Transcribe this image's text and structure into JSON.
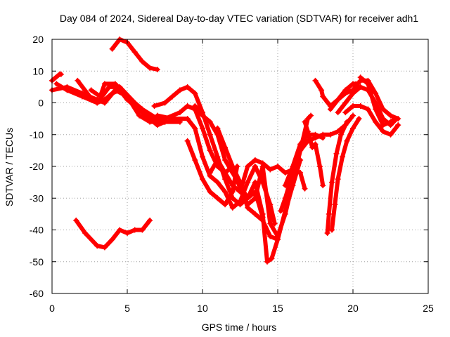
{
  "chart_data": {
    "type": "scatter",
    "title": "Day 084 of 2024, Sidereal Day-to-day VTEC variation (SDTVAR) for receiver adh1",
    "xlabel": "GPS time / hours",
    "ylabel": "SDTVAR / TECUs",
    "xlim": [
      0,
      25
    ],
    "ylim": [
      -60,
      20
    ],
    "xticks": [
      "0",
      "5",
      "10",
      "15",
      "20",
      "25"
    ],
    "yticks": [
      "-60",
      "-50",
      "-40",
      "-30",
      "-20",
      "-10",
      "0",
      "10",
      "20"
    ],
    "grid": true,
    "legend": "none",
    "marker": "+",
    "series_color": "#ff0000",
    "series": [
      {
        "points": [
          [
            0,
            7
          ],
          [
            0.5,
            9
          ],
          [
            0.6,
            9
          ]
        ]
      },
      {
        "points": [
          [
            0,
            4
          ],
          [
            1,
            5
          ],
          [
            2,
            3
          ],
          [
            3,
            1
          ],
          [
            3.5,
            0
          ],
          [
            4.2,
            4
          ],
          [
            5,
            2
          ],
          [
            6,
            -2
          ],
          [
            7,
            -5
          ],
          [
            7.5,
            -6
          ]
        ]
      },
      {
        "points": [
          [
            0.3,
            6
          ],
          [
            1,
            4
          ],
          [
            2,
            2
          ],
          [
            3,
            0
          ],
          [
            3.5,
            1
          ],
          [
            4,
            3
          ],
          [
            4.5,
            4
          ],
          [
            5,
            1
          ],
          [
            6,
            -3
          ],
          [
            7,
            -6
          ]
        ]
      },
      {
        "points": [
          [
            1.7,
            7
          ],
          [
            2.5,
            2
          ],
          [
            3,
            0
          ],
          [
            3.8,
            5
          ],
          [
            4.5,
            5
          ],
          [
            5.5,
            0
          ],
          [
            6,
            -3
          ],
          [
            6.5,
            -5
          ],
          [
            7,
            -7
          ],
          [
            7.5,
            -6
          ]
        ]
      },
      {
        "points": [
          [
            2.6,
            4
          ],
          [
            3.2,
            2
          ],
          [
            3.5,
            6
          ],
          [
            4.2,
            6
          ],
          [
            5,
            2
          ],
          [
            5.8,
            -4
          ],
          [
            6.5,
            -6
          ],
          [
            7.5,
            -6
          ],
          [
            8.5,
            -6
          ]
        ]
      },
      {
        "points": [
          [
            4,
            17
          ],
          [
            4.5,
            20
          ],
          [
            5,
            19
          ],
          [
            5.5,
            16
          ],
          [
            6,
            13
          ],
          [
            6.5,
            11
          ],
          [
            7,
            10.5
          ]
        ]
      },
      {
        "points": [
          [
            1.6,
            -37
          ],
          [
            2.2,
            -41
          ],
          [
            3,
            -45
          ],
          [
            3.5,
            -45.5
          ],
          [
            4,
            -43
          ],
          [
            4.5,
            -40
          ],
          [
            5,
            -41
          ],
          [
            5.5,
            -40
          ],
          [
            6,
            -40
          ],
          [
            6.5,
            -37
          ]
        ]
      },
      {
        "points": [
          [
            6.8,
            -1
          ],
          [
            7.5,
            0
          ],
          [
            8,
            2
          ],
          [
            8.5,
            4
          ],
          [
            9,
            5
          ],
          [
            9.5,
            3
          ],
          [
            10,
            -3
          ],
          [
            10.5,
            -10
          ],
          [
            11,
            -17
          ],
          [
            11.5,
            -24
          ],
          [
            12,
            -30
          ],
          [
            12.5,
            -32
          ],
          [
            13,
            -30
          ],
          [
            13.5,
            -28
          ],
          [
            14,
            -36
          ]
        ]
      },
      {
        "points": [
          [
            7,
            -4
          ],
          [
            8,
            -5
          ],
          [
            9,
            -5
          ],
          [
            9.5,
            -8
          ],
          [
            10,
            -17
          ],
          [
            10.5,
            -23
          ],
          [
            11,
            -25
          ],
          [
            11.5,
            -28
          ],
          [
            12,
            -33
          ],
          [
            12.5,
            -31
          ],
          [
            13,
            -25
          ],
          [
            13.5,
            -20
          ],
          [
            14,
            -25
          ],
          [
            14.5,
            -32
          ],
          [
            14.8,
            -38
          ]
        ]
      },
      {
        "points": [
          [
            7.5,
            -5
          ],
          [
            8.5,
            -3
          ],
          [
            9,
            -1
          ],
          [
            9.5,
            -2
          ],
          [
            10,
            -8
          ],
          [
            10.5,
            -15
          ],
          [
            11,
            -20
          ],
          [
            11.5,
            -22
          ],
          [
            12,
            -20
          ],
          [
            12.5,
            -25
          ],
          [
            13,
            -33
          ],
          [
            13.5,
            -35
          ],
          [
            14,
            -37
          ],
          [
            14.5,
            -42
          ],
          [
            15,
            -43
          ]
        ]
      },
      {
        "points": [
          [
            9,
            -12
          ],
          [
            9.5,
            -18
          ],
          [
            10,
            -24
          ],
          [
            10.5,
            -28
          ],
          [
            11,
            -30
          ],
          [
            11.5,
            -32
          ],
          [
            12,
            -28
          ],
          [
            12.3,
            -20
          ]
        ]
      },
      {
        "points": [
          [
            10.5,
            -22
          ],
          [
            11,
            -18
          ],
          [
            11.5,
            -22
          ],
          [
            12,
            -26
          ],
          [
            12.5,
            -28
          ],
          [
            13,
            -20
          ],
          [
            13.5,
            -18
          ],
          [
            14,
            -19
          ],
          [
            14.5,
            -21
          ],
          [
            15,
            -20
          ],
          [
            15.5,
            -22
          ],
          [
            16,
            -21
          ],
          [
            16.5,
            -22
          ],
          [
            16.8,
            -27
          ]
        ]
      },
      {
        "points": [
          [
            11,
            -8
          ],
          [
            11.5,
            -14
          ],
          [
            12,
            -20
          ],
          [
            12.5,
            -27
          ],
          [
            13,
            -32
          ],
          [
            13.5,
            -30
          ],
          [
            14,
            -20
          ],
          [
            14.5,
            -38
          ],
          [
            15,
            -42
          ],
          [
            15.5,
            -35
          ],
          [
            16,
            -25
          ],
          [
            16.5,
            -15
          ],
          [
            17,
            -5
          ],
          [
            17.2,
            -4
          ]
        ]
      },
      {
        "points": [
          [
            9.5,
            -1
          ],
          [
            10,
            -4
          ],
          [
            10.5,
            -6
          ],
          [
            11,
            -10
          ],
          [
            11.5,
            -18
          ],
          [
            12,
            -22
          ],
          [
            12.5,
            -26
          ],
          [
            13,
            -30
          ],
          [
            13.5,
            -25
          ],
          [
            14,
            -35
          ],
          [
            14.3,
            -50
          ],
          [
            14.6,
            -49
          ],
          [
            15,
            -43
          ],
          [
            15.5,
            -34
          ],
          [
            16,
            -26
          ],
          [
            16.5,
            -18
          ]
        ]
      },
      {
        "points": [
          [
            15.2,
            -34
          ],
          [
            15.5,
            -30
          ],
          [
            16,
            -22
          ],
          [
            16.5,
            -15
          ],
          [
            17,
            -12
          ],
          [
            17.5,
            -11
          ],
          [
            18,
            -10
          ],
          [
            18.5,
            -10
          ],
          [
            19,
            -9
          ],
          [
            19.5,
            -7
          ],
          [
            20,
            -4
          ]
        ]
      },
      {
        "points": [
          [
            15.5,
            -26
          ],
          [
            16,
            -20
          ],
          [
            16.5,
            -13
          ],
          [
            17,
            -10
          ],
          [
            17.5,
            -10
          ],
          [
            18,
            -11
          ]
        ]
      },
      {
        "points": [
          [
            16.8,
            -6
          ],
          [
            17,
            -9
          ],
          [
            17.3,
            -14
          ],
          [
            17.5,
            -13
          ],
          [
            17.8,
            -20
          ],
          [
            18,
            -26
          ]
        ]
      },
      {
        "points": [
          [
            18.3,
            -41
          ],
          [
            18.4,
            -35
          ],
          [
            18.6,
            -25
          ],
          [
            18.9,
            -16
          ],
          [
            19.2,
            -10
          ],
          [
            19.6,
            -6
          ]
        ]
      },
      {
        "points": [
          [
            18.6,
            -40
          ],
          [
            18.8,
            -32
          ],
          [
            19,
            -24
          ],
          [
            19.3,
            -17
          ],
          [
            19.6,
            -12
          ],
          [
            20,
            -8
          ],
          [
            20.4,
            -5
          ]
        ]
      },
      {
        "points": [
          [
            17.5,
            7
          ],
          [
            17.9,
            4
          ],
          [
            18,
            2
          ],
          [
            18.5,
            -1
          ],
          [
            19,
            1
          ],
          [
            19.5,
            4
          ],
          [
            20,
            6
          ],
          [
            20.2,
            6
          ]
        ]
      },
      {
        "points": [
          [
            18.5,
            -2
          ],
          [
            19,
            1
          ],
          [
            19.5,
            3
          ],
          [
            20,
            4
          ],
          [
            20.5,
            7
          ],
          [
            21,
            7
          ],
          [
            21.5,
            3
          ],
          [
            22,
            -2
          ],
          [
            22.5,
            -4
          ],
          [
            23,
            -5
          ]
        ]
      },
      {
        "points": [
          [
            19,
            -3
          ],
          [
            19.5,
            0
          ],
          [
            20,
            3
          ],
          [
            20.5,
            5
          ],
          [
            21,
            4
          ],
          [
            21.5,
            0
          ],
          [
            22,
            -5
          ],
          [
            22.5,
            -7
          ],
          [
            22.9,
            -5
          ]
        ]
      },
      {
        "points": [
          [
            19.5,
            -3
          ],
          [
            20,
            -1
          ],
          [
            20.5,
            -1
          ],
          [
            21,
            -2
          ],
          [
            21.5,
            -6
          ],
          [
            22,
            -9
          ],
          [
            22.5,
            -10
          ],
          [
            23,
            -7
          ]
        ]
      },
      {
        "points": [
          [
            20.5,
            8
          ],
          [
            21,
            6
          ],
          [
            21.5,
            -2
          ],
          [
            22,
            -7
          ],
          [
            22.5,
            -6
          ],
          [
            22.8,
            -5
          ]
        ]
      }
    ]
  }
}
